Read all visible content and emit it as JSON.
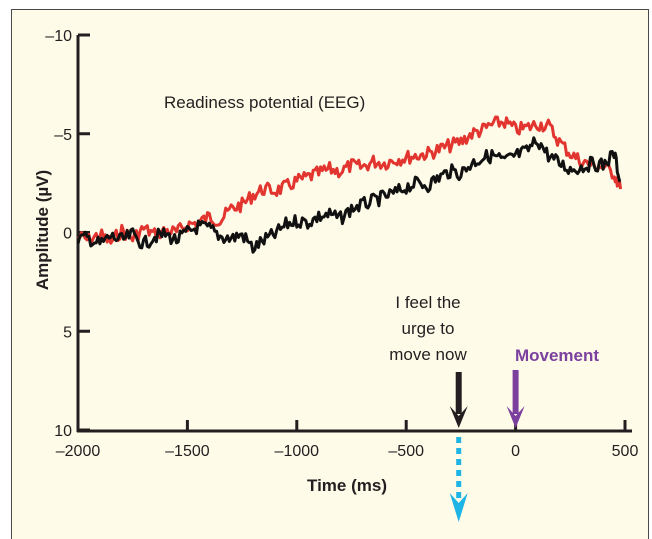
{
  "chart_data": {
    "type": "line",
    "title": "Readiness potential (EEG)",
    "xlabel": "Time (ms)",
    "ylabel": "Amplitude (µV)",
    "xlim": [
      -2000,
      500
    ],
    "ylim": [
      10,
      -10
    ],
    "y_inverted": true,
    "grid": false,
    "x_ticks": [
      -2000,
      -1500,
      -1000,
      -500,
      0,
      500
    ],
    "x_tick_labels": [
      "–2000",
      "–1500",
      "–1000",
      "–500",
      "0",
      "500"
    ],
    "y_ticks": [
      -10,
      -5,
      0,
      5,
      10
    ],
    "y_tick_labels": [
      "–10",
      "–5",
      "0",
      "5",
      "10"
    ],
    "series": [
      {
        "name": "red-trace",
        "color": "#e2352f",
        "x": [
          -2000,
          -1950,
          -1900,
          -1850,
          -1800,
          -1750,
          -1700,
          -1650,
          -1600,
          -1550,
          -1500,
          -1450,
          -1400,
          -1350,
          -1300,
          -1250,
          -1200,
          -1150,
          -1100,
          -1050,
          -1000,
          -950,
          -900,
          -850,
          -800,
          -750,
          -700,
          -650,
          -600,
          -550,
          -500,
          -450,
          -400,
          -350,
          -300,
          -250,
          -200,
          -150,
          -100,
          -50,
          0,
          50,
          100,
          150,
          200,
          250,
          300,
          350,
          400,
          450,
          480
        ],
        "values": [
          0.2,
          0.4,
          0.1,
          0.5,
          -0.1,
          0.3,
          -0.2,
          0.1,
          -0.1,
          0.0,
          -0.4,
          -0.5,
          -0.8,
          -0.6,
          -1.2,
          -1.4,
          -1.9,
          -2.2,
          -2.1,
          -2.3,
          -2.6,
          -2.8,
          -3.0,
          -3.2,
          -3.1,
          -3.4,
          -3.3,
          -3.6,
          -3.5,
          -3.7,
          -3.8,
          -3.9,
          -4.0,
          -4.2,
          -4.4,
          -4.6,
          -5.0,
          -5.2,
          -5.5,
          -5.6,
          -5.2,
          -5.3,
          -5.5,
          -5.4,
          -4.6,
          -4.0,
          -3.6,
          -3.4,
          -3.3,
          -3.0,
          -2.2
        ]
      },
      {
        "name": "black-trace",
        "color": "#111111",
        "x": [
          -2000,
          -1950,
          -1900,
          -1850,
          -1800,
          -1750,
          -1700,
          -1650,
          -1600,
          -1550,
          -1500,
          -1450,
          -1400,
          -1350,
          -1300,
          -1250,
          -1200,
          -1150,
          -1100,
          -1050,
          -1000,
          -950,
          -900,
          -850,
          -800,
          -750,
          -700,
          -650,
          -600,
          -550,
          -500,
          -450,
          -400,
          -350,
          -300,
          -250,
          -200,
          -150,
          -100,
          -50,
          0,
          50,
          100,
          150,
          200,
          250,
          300,
          350,
          400,
          450,
          480
        ],
        "values": [
          0.3,
          0.3,
          0.6,
          0.2,
          0.4,
          0.1,
          0.6,
          0.2,
          0.1,
          0.4,
          0.0,
          -0.3,
          -0.2,
          0.2,
          0.3,
          0.1,
          0.8,
          0.4,
          0.1,
          -0.4,
          -0.6,
          -0.5,
          -0.8,
          -0.9,
          -0.7,
          -1.2,
          -1.4,
          -1.6,
          -1.8,
          -2.0,
          -2.3,
          -2.5,
          -2.4,
          -2.8,
          -3.1,
          -3.0,
          -3.5,
          -3.8,
          -3.9,
          -3.6,
          -3.9,
          -4.1,
          -4.7,
          -3.9,
          -3.5,
          -3.2,
          -3.3,
          -3.5,
          -3.4,
          -4.0,
          -2.6
        ]
      }
    ],
    "annotations": [
      {
        "text_lines": [
          "I feel the",
          "urge to",
          "move now"
        ],
        "x": -260,
        "color": "#231f20",
        "arrow": "down"
      },
      {
        "text": "Movement",
        "x": 0,
        "color": "#7b3f9e",
        "arrow": "down"
      },
      {
        "x": -260,
        "color": "#1fb4e6",
        "arrow": "down-dashed",
        "below_axis": true
      }
    ]
  }
}
